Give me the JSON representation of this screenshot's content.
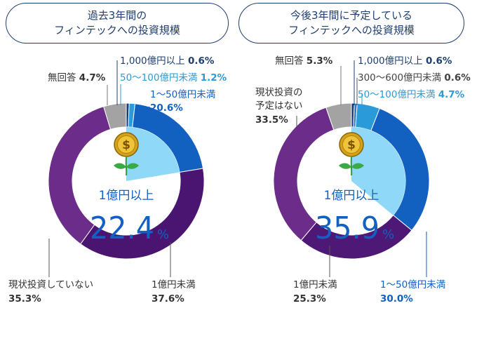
{
  "colors": {
    "navy": "#1f3f6e",
    "dark_blue": "#173b7a",
    "mid_blue": "#2a78c8",
    "blue": "#1260c0",
    "light_blue": "#8fd8f8",
    "dark_purple": "#4a1570",
    "purple": "#6b2c8a",
    "gray": "#a3a3a3",
    "pale_blue": "#c8e8fc",
    "sky": "#2b9ad8",
    "purple_dark_right": "#4e1877"
  },
  "charts": [
    {
      "title_lines": [
        "過去3年間の",
        "フィンテックへの投資規模"
      ],
      "center": {
        "label": "1億円以上",
        "value": "22.4",
        "unit": "%"
      }
    },
    {
      "title_lines": [
        "今後3年間に予定している",
        "フィンテックへの投資規模"
      ],
      "center": {
        "label": "1億円以上",
        "value": "35.9",
        "unit": "%"
      }
    }
  ],
  "chart_data": [
    {
      "type": "pie",
      "title": "過去3年間のフィンテックへの投資規模",
      "unit": "%",
      "slices": [
        {
          "name": "1,000億円以上",
          "value": 0.6,
          "value_label": "0.6%"
        },
        {
          "name": "50～100億円未満",
          "value": 1.2,
          "value_label": "1.2%"
        },
        {
          "name": "1～50億円未満",
          "value": 20.6,
          "value_label": "20.6%"
        },
        {
          "name": "1億円未満",
          "value": 37.6,
          "value_label": "37.6%"
        },
        {
          "name": "現状投資していない",
          "value": 35.3,
          "value_label": "35.3%"
        },
        {
          "name": "無回答",
          "value": 4.7,
          "value_label": "4.7%"
        }
      ]
    },
    {
      "type": "pie",
      "title": "今後3年間に予定しているフィンテックへの投資規模",
      "unit": "%",
      "slices": [
        {
          "name": "1,000億円以上",
          "value": 0.6,
          "value_label": "0.6%"
        },
        {
          "name": "300～600億円未満",
          "value": 0.6,
          "value_label": "0.6%"
        },
        {
          "name": "50～100億円未満",
          "value": 4.7,
          "value_label": "4.7%"
        },
        {
          "name": "1～50億円未満",
          "value": 30.0,
          "value_label": "30.0%"
        },
        {
          "name": "1億円未満",
          "value": 25.3,
          "value_label": "25.3%"
        },
        {
          "name": "現状投資の予定はない",
          "value": 33.5,
          "value_label": "33.5%"
        },
        {
          "name": "無回答",
          "value": 5.3,
          "value_label": "5.3%"
        }
      ]
    }
  ]
}
